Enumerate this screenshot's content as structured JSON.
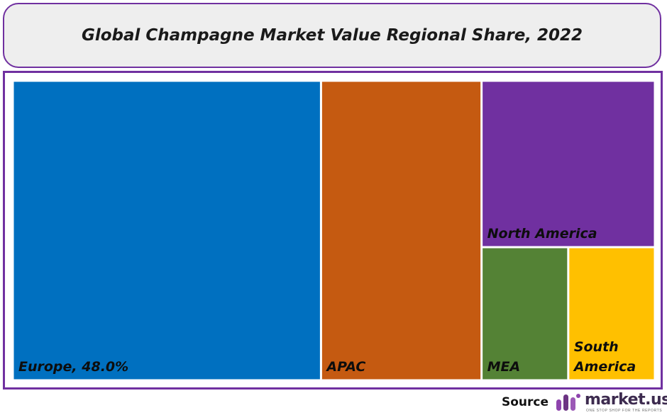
{
  "title": "Global Champagne Market Value Regional Share, 2022",
  "chart_data": {
    "type": "treemap",
    "title": "Global Champagne Market Value Regional Share, 2022",
    "items": [
      {
        "name": "Europe",
        "label": "Europe, 48.0%",
        "value": 48.0,
        "color": "#0070c0"
      },
      {
        "name": "APAC",
        "label": "APAC",
        "value": 25.0,
        "color": "#c55a11"
      },
      {
        "name": "North America",
        "label": "North America",
        "value": 15.0,
        "color": "#7030a0"
      },
      {
        "name": "MEA",
        "label": "MEA",
        "value": 6.0,
        "color": "#548235"
      },
      {
        "name": "South America",
        "label": "South America",
        "value": 6.0,
        "color": "#ffc000"
      }
    ]
  },
  "footer": {
    "source_label": "Source",
    "logo_text": "market.us",
    "logo_tagline": "ONE STOP SHOP FOR THE REPORTS"
  },
  "colors": {
    "frame": "#7030a0",
    "title_bg": "#eeeeee"
  }
}
